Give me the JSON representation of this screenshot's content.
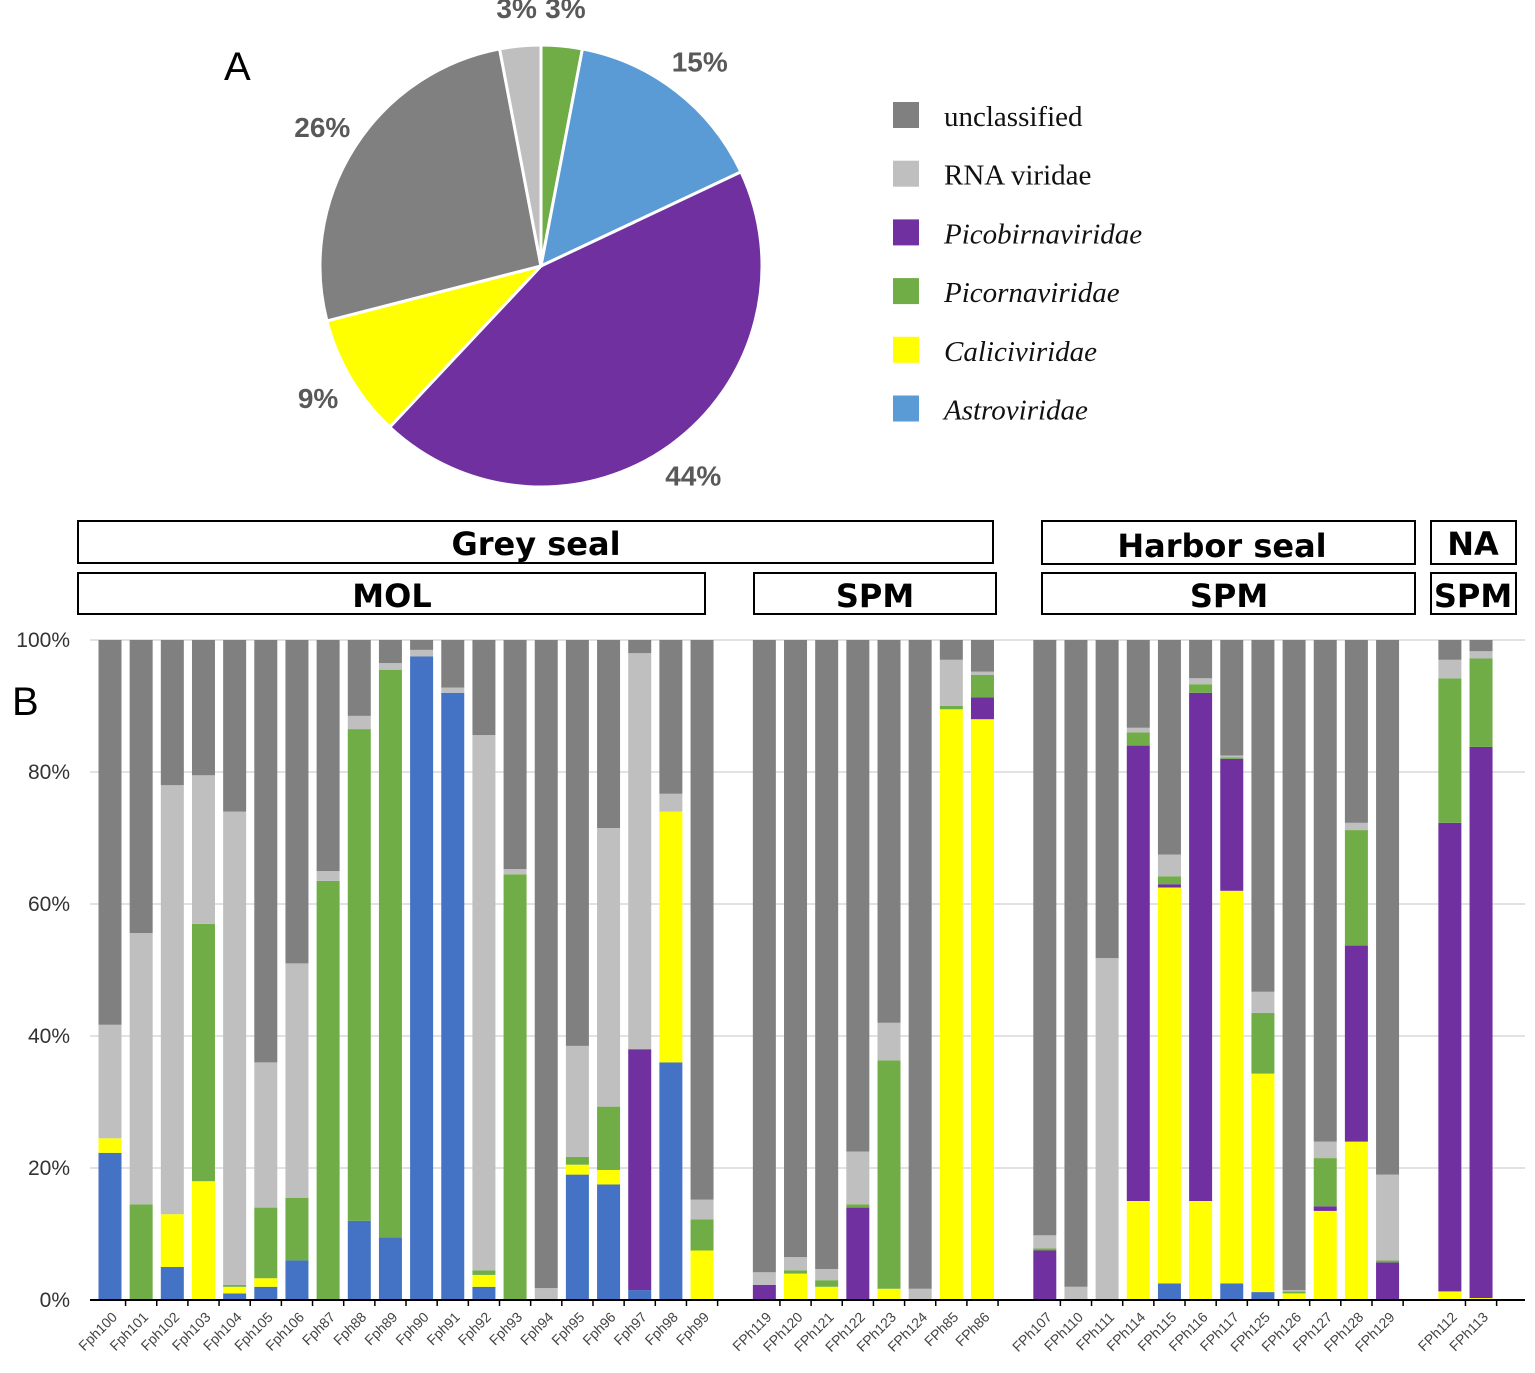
{
  "chart_data": [
    {
      "type": "pie",
      "panel_label": "A",
      "slices": [
        {
          "name": "Picornaviridae",
          "value": 3,
          "label": "3%",
          "color": "#70ad47"
        },
        {
          "name": "Astroviridae",
          "value": 15,
          "label": "15%",
          "color": "#5b9bd5"
        },
        {
          "name": "Picobirnaviridae",
          "value": 44,
          "label": "44%",
          "color": "#7030a0"
        },
        {
          "name": "Caliciviridae",
          "value": 9,
          "label": "9%",
          "color": "#ffff00"
        },
        {
          "name": "unclassified",
          "value": 26,
          "label": "26%",
          "color": "#808080"
        },
        {
          "name": "RNA viridae",
          "value": 3,
          "label": "3%",
          "color": "#bfbfbf"
        }
      ],
      "legend": [
        {
          "name": "unclassified",
          "italic": false,
          "color": "#808080"
        },
        {
          "name": "RNA viridae",
          "italic": false,
          "color": "#bfbfbf"
        },
        {
          "name": "Picobirnaviridae",
          "italic": true,
          "color": "#7030a0"
        },
        {
          "name": "Picornaviridae",
          "italic": true,
          "color": "#70ad47"
        },
        {
          "name": "Caliciviridae",
          "italic": true,
          "color": "#ffff00"
        },
        {
          "name": "Astroviridae",
          "italic": true,
          "color": "#5b9bd5"
        }
      ],
      "legend_position": "right"
    },
    {
      "type": "bar",
      "stacked": true,
      "panel_label": "B",
      "ylim": [
        0,
        100
      ],
      "yticks": [
        "0%",
        "20%",
        "40%",
        "60%",
        "80%",
        "100%"
      ],
      "grid": true,
      "groups": [
        {
          "host": "Grey seal",
          "site": "MOL",
          "categories": [
            "Fph100",
            "Fph101",
            "Fph102",
            "Fph103",
            "Fph104",
            "Fph105",
            "Fph106",
            "Fph87",
            "Fph88",
            "Fph89",
            "Fph90",
            "Fph91",
            "Fph92",
            "Fph93",
            "Fph94",
            "Fph95",
            "Fph96",
            "Fph97",
            "Fph98",
            "Fph99"
          ]
        },
        {
          "host": "Grey seal",
          "site": "SPM",
          "categories": [
            "FPh119",
            "FPh120",
            "FPh121",
            "FPh122",
            "FPh123",
            "FPh124",
            "FPh85",
            "FPh86"
          ]
        },
        {
          "host": "Harbor seal",
          "site": "SPM",
          "categories": [
            "FPh107",
            "FPh110",
            "FPh111",
            "FPh114",
            "FPh115",
            "FPh116",
            "FPh117",
            "FPh125",
            "FPh126",
            "FPh127",
            "FPh128",
            "FPh129"
          ]
        },
        {
          "host": "NA",
          "site": "SPM",
          "categories": [
            "FPh112",
            "FPh113"
          ]
        }
      ],
      "series": [
        {
          "name": "Astroviridae",
          "color": "#4472c4",
          "values": [
            22.3,
            0,
            5,
            0,
            1,
            2,
            6,
            0,
            12,
            9.5,
            97.5,
            92,
            2,
            0,
            0,
            19,
            17.5,
            1.5,
            36,
            0,
            0,
            0,
            0,
            0,
            0,
            0,
            0,
            0,
            0,
            0,
            0,
            0,
            2.5,
            0,
            2.5,
            1.2,
            0,
            0,
            0,
            0,
            0,
            0
          ]
        },
        {
          "name": "Caliciviridae",
          "color": "#ffff00",
          "values": [
            2.2,
            0,
            8,
            18,
            1,
            1.3,
            0,
            0,
            0,
            0,
            0,
            0,
            1.8,
            0,
            0,
            1.5,
            2.2,
            0,
            38,
            7.5,
            0,
            4,
            2,
            0,
            1.7,
            0,
            89.5,
            88,
            0,
            0,
            0,
            15,
            60,
            15,
            59.5,
            33.1,
            1,
            13.5,
            24,
            0,
            1.3,
            0.3
          ]
        },
        {
          "name": "Picobirnaviridae",
          "color": "#7030a0",
          "values": [
            0,
            0,
            0,
            0,
            0,
            0,
            0,
            0,
            0,
            0,
            0,
            0,
            0,
            0,
            0,
            0,
            0,
            36.5,
            0,
            0,
            2.3,
            0,
            0,
            14,
            0,
            0,
            0,
            3.3,
            7.5,
            0,
            0,
            69,
            0.5,
            77,
            20,
            0,
            0,
            0.7,
            29.7,
            5.7,
            71,
            83.5
          ]
        },
        {
          "name": "Picornaviridae",
          "color": "#70ad47",
          "values": [
            0,
            14.5,
            0,
            39,
            0.3,
            10.7,
            9.5,
            63.5,
            74.5,
            86,
            0,
            0,
            0.7,
            64.5,
            0,
            1.2,
            9.6,
            0,
            0,
            4.7,
            0,
            0.5,
            1,
            0.5,
            34.6,
            0,
            0.5,
            3.4,
            0.3,
            0,
            0,
            2,
            1.2,
            1.3,
            0.2,
            9.2,
            0.3,
            7.3,
            17.5,
            0.3,
            21.9,
            13.4
          ]
        },
        {
          "name": "RNA viridae",
          "color": "#bfbfbf",
          "values": [
            17.2,
            41.1,
            65,
            22.5,
            71.7,
            22,
            35.5,
            1.5,
            2,
            1,
            1,
            0.8,
            81.1,
            0.8,
            1.8,
            16.8,
            42.2,
            60,
            2.7,
            3,
            1.9,
            2,
            1.7,
            8,
            5.7,
            1.7,
            7,
            0.5,
            2,
            2,
            51.8,
            0.7,
            3.3,
            0.9,
            0.3,
            3.2,
            0.2,
            2.5,
            1.1,
            13,
            2.8,
            1.1
          ]
        },
        {
          "name": "unclassified",
          "color": "#808080",
          "values": [
            58.3,
            44.4,
            22,
            20.5,
            26,
            64,
            49,
            35,
            11.5,
            3.5,
            1.5,
            7.2,
            14.4,
            34.7,
            98.2,
            61.5,
            28.5,
            2,
            23.3,
            84.8,
            95.8,
            93.5,
            95.3,
            77.5,
            58,
            98.3,
            3,
            4.8,
            90.2,
            98,
            48.2,
            13.3,
            32.5,
            5.8,
            17.5,
            53.3,
            98.5,
            76,
            27.7,
            81,
            3,
            1.7
          ]
        }
      ]
    }
  ],
  "headers": {
    "grey_seal": "Grey seal",
    "harbor_seal": "Harbor seal",
    "na": "NA",
    "mol": "MOL",
    "spm1": "SPM",
    "spm2": "SPM",
    "spm3": "SPM"
  }
}
